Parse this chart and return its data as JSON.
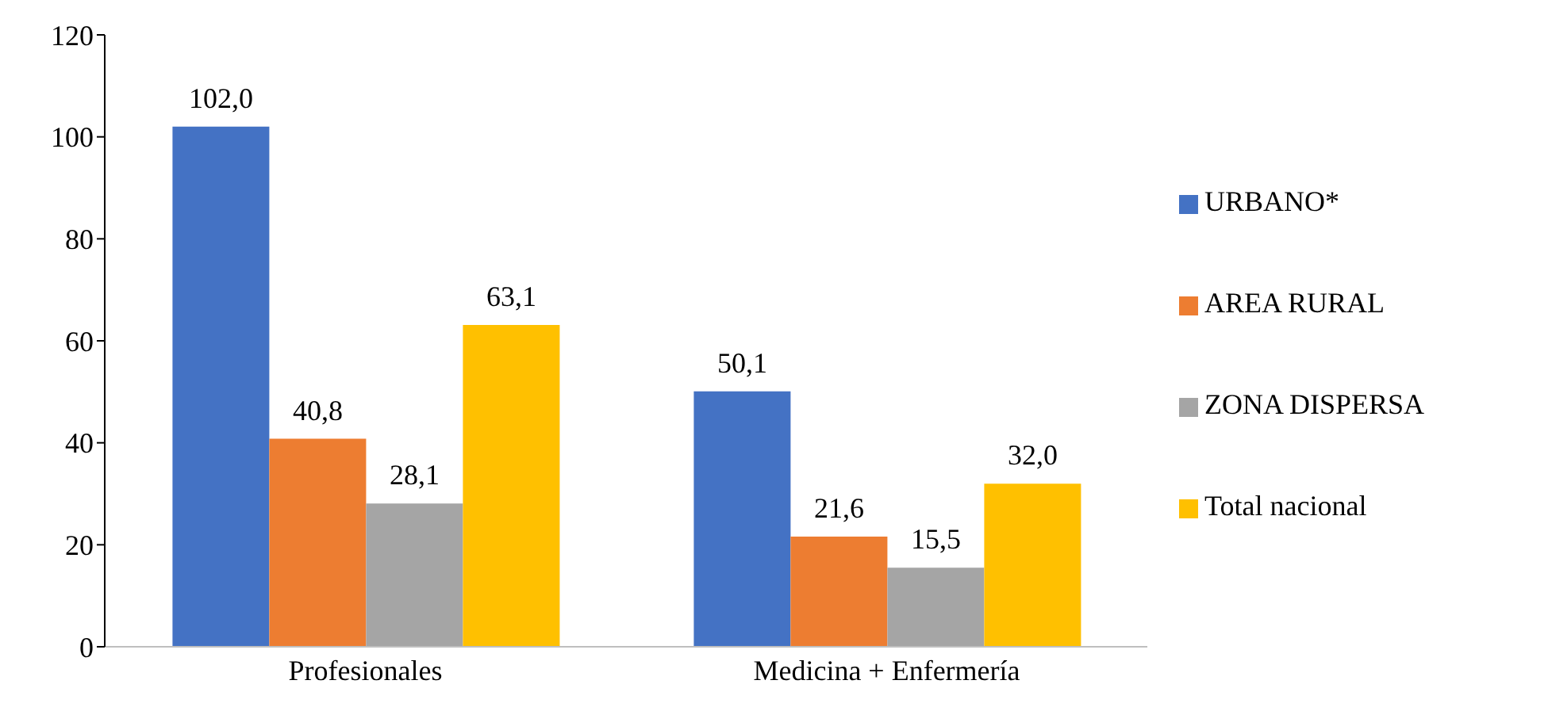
{
  "chart_data": {
    "type": "bar",
    "categories": [
      "Profesionales",
      "Medicina + Enfermería"
    ],
    "series": [
      {
        "name": "URBANO*",
        "color": "#4472c4",
        "values": [
          102.0,
          50.1
        ],
        "value_labels": [
          "102,0",
          "50,1"
        ]
      },
      {
        "name": "AREA RURAL",
        "color": "#ed7d31",
        "values": [
          40.8,
          21.6
        ],
        "value_labels": [
          "40,8",
          "21,6"
        ]
      },
      {
        "name": "ZONA DISPERSA",
        "color": "#a5a5a5",
        "values": [
          28.1,
          15.5
        ],
        "value_labels": [
          "28,1",
          "15,5"
        ]
      },
      {
        "name": "Total nacional",
        "color": "#ffc000",
        "values": [
          63.1,
          32.0
        ],
        "value_labels": [
          "63,1",
          "32,0"
        ]
      }
    ],
    "ylim": [
      0,
      120
    ],
    "yticks": [
      0,
      20,
      40,
      60,
      80,
      100,
      120
    ],
    "grid": false,
    "legend": "right"
  }
}
